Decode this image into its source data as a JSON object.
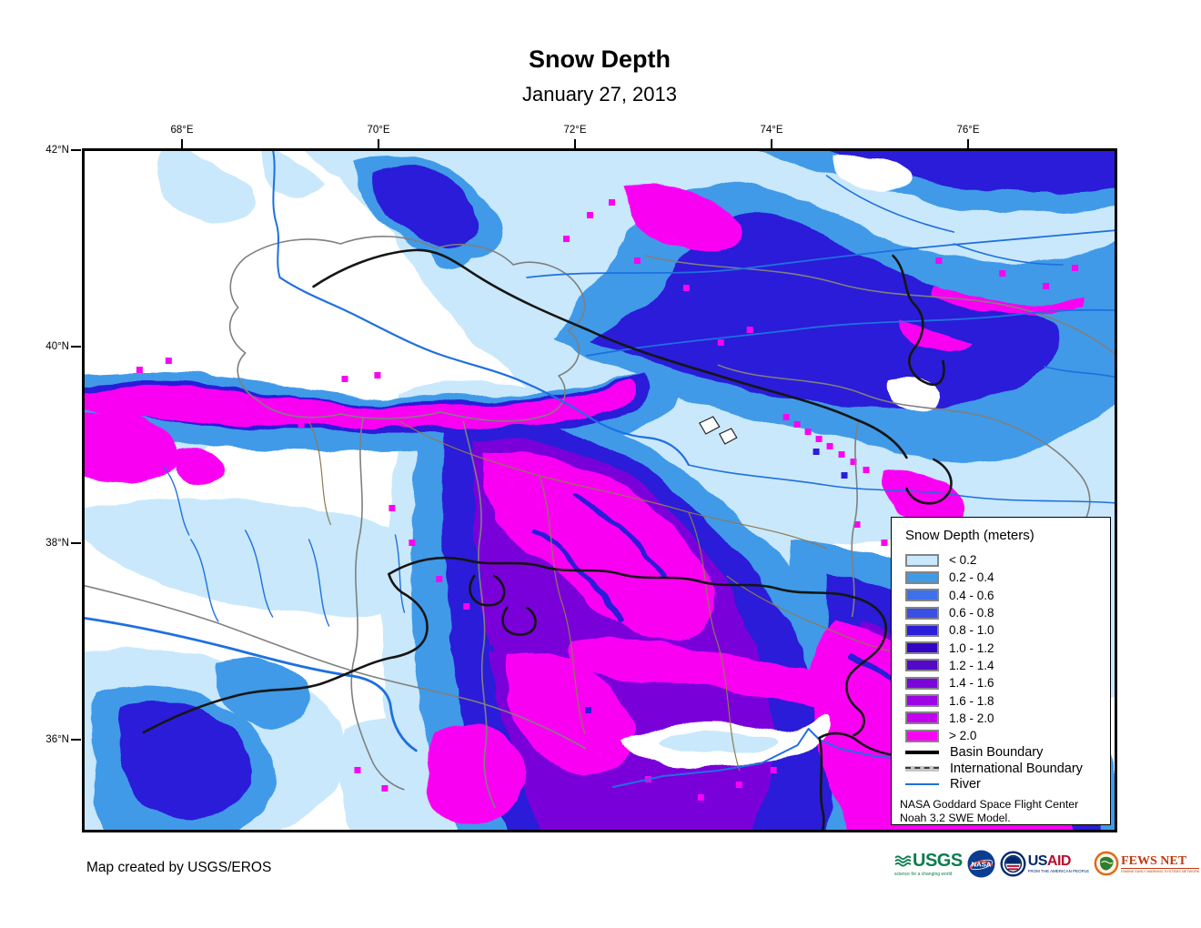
{
  "title": "Snow Depth",
  "subtitle": "January 27, 2013",
  "credit": "Map created by USGS/EROS",
  "axes": {
    "lon_labels": [
      "68°E",
      "70°E",
      "72°E",
      "74°E",
      "76°E"
    ],
    "lat_labels": [
      "42°N",
      "40°N",
      "38°N",
      "36°N"
    ]
  },
  "legend": {
    "title": "Snow Depth (meters)",
    "items": [
      {
        "label": "< 0.2",
        "color": "#c9e8fb"
      },
      {
        "label": "0.2 - 0.4",
        "color": "#3f9ae8"
      },
      {
        "label": "0.4 - 0.6",
        "color": "#3d70ea"
      },
      {
        "label": "0.6 - 0.8",
        "color": "#3a4fe4"
      },
      {
        "label": "0.8 - 1.0",
        "color": "#2a1ed8"
      },
      {
        "label": "1.0 - 1.2",
        "color": "#3404c6"
      },
      {
        "label": "1.2 - 1.4",
        "color": "#5408c8"
      },
      {
        "label": "1.4 - 1.6",
        "color": "#7a06da"
      },
      {
        "label": "1.6 - 1.8",
        "color": "#9c04e4"
      },
      {
        "label": "1.8 - 2.0",
        "color": "#c402ee"
      },
      {
        "label": "> 2.0",
        "color": "#fa02f2"
      }
    ],
    "lines": [
      {
        "label": "Basin Boundary",
        "style": "basin"
      },
      {
        "label": "International Boundary",
        "style": "international"
      },
      {
        "label": "River",
        "style": "river"
      }
    ],
    "note_lines": [
      "NASA Goddard Space Flight Center",
      "Noah 3.2 SWE Model."
    ]
  },
  "logos": {
    "usgs": {
      "text": "USGS",
      "tagline": "science for a changing world"
    },
    "nasa": {
      "text": "NASA"
    },
    "usaid": {
      "us": "US",
      "aid": "AID",
      "tagline": "FROM THE AMERICAN PEOPLE"
    },
    "fewsnet": {
      "text": "FEWS NET",
      "tagline": "FAMINE EARLY WARNING SYSTEMS NETWORK"
    }
  },
  "colors": {
    "river": "#1f6fe0",
    "basin": "#151515",
    "intl": "#7f7f7f",
    "subbasin": "#8c7a52"
  }
}
